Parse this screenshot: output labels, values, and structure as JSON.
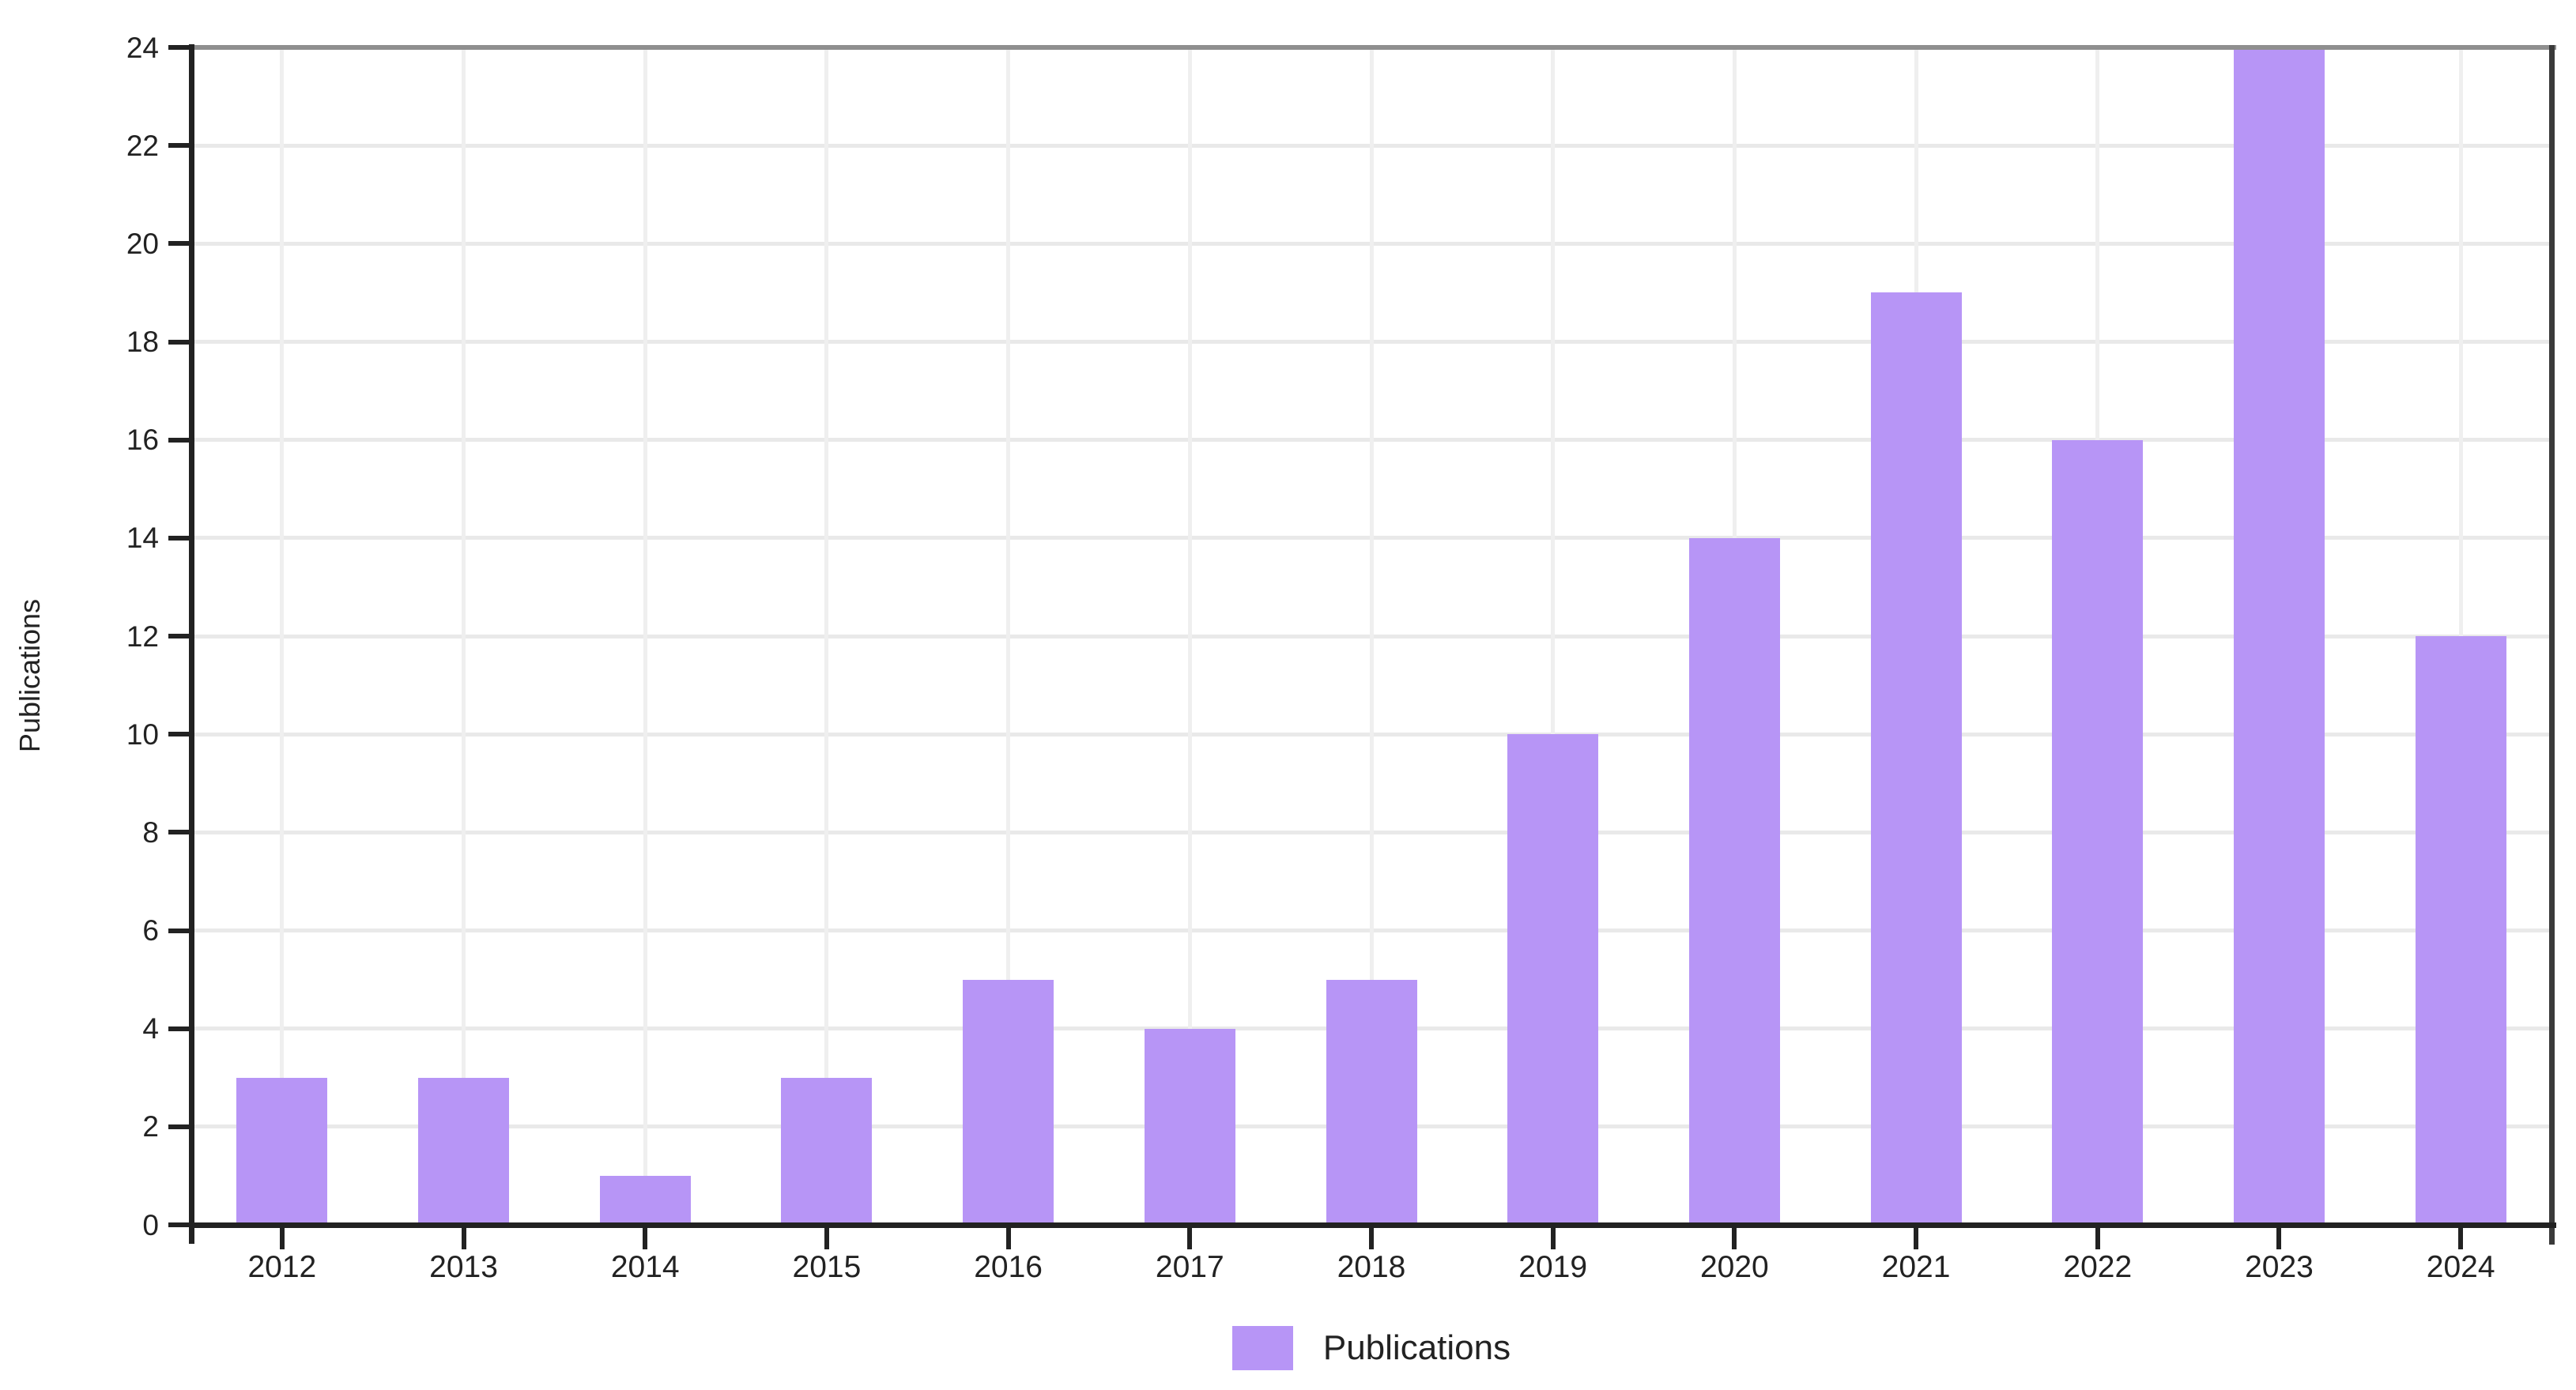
{
  "chart_data": {
    "type": "bar",
    "title": "",
    "categories": [
      "2012",
      "2013",
      "2014",
      "2015",
      "2016",
      "2017",
      "2018",
      "2019",
      "2020",
      "2021",
      "2022",
      "2023",
      "2024"
    ],
    "series": [
      {
        "name": "Publications",
        "values": [
          3,
          3,
          1,
          3,
          5,
          4,
          5,
          10,
          14,
          19,
          16,
          24,
          12
        ]
      }
    ],
    "xlabel": "",
    "ylabel": "Publications",
    "ylim": [
      0,
      24
    ],
    "ytick_step": 2,
    "yticks": [
      0,
      2,
      4,
      6,
      8,
      10,
      12,
      14,
      16,
      18,
      20,
      22,
      24
    ],
    "grid": "on",
    "legend_position": "bottom",
    "legend_labels": [
      "Publications"
    ],
    "colors": {
      "bar_fill": "#b795f6",
      "axis_line": "#222222",
      "top_border": "#8f8f8f",
      "right_border": "#3a3a3a",
      "h_gridline": "#e9e9e9",
      "v_gridline": "#efefef",
      "text": "#222222"
    }
  }
}
